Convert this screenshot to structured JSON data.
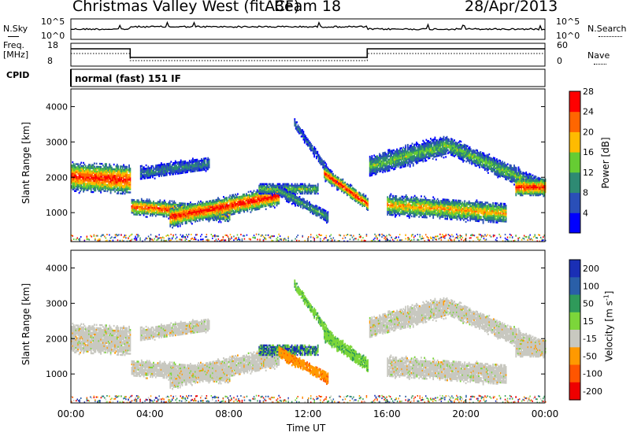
{
  "header": {
    "station": "Christmas Valley West (fitACF)",
    "beam": "Beam 18",
    "date": "28/Apr/2013"
  },
  "noise_panel": {
    "left_label": "N.Sky",
    "right_label": "N.Search",
    "tick_top": "10^5",
    "tick_bottom": "10^0"
  },
  "freq_panel": {
    "left_label_1": "Freq.",
    "left_label_2": "[MHz]",
    "tick_top": "18",
    "tick_bottom": "8",
    "right_label": "Nave",
    "right_tick_top": "60",
    "right_tick_bottom": "0"
  },
  "cpid": {
    "label": "CPID",
    "mode": "normal (fast) 151 IF"
  },
  "chart_data": [
    {
      "type": "heatmap",
      "quantity": "Power",
      "ylabel": "Slant Range [km]",
      "xlabel": "",
      "ylim": [
        180,
        4500
      ],
      "yticks": [
        "1000",
        "2000",
        "3000",
        "4000"
      ],
      "colorbar": {
        "label": "Power [dB]",
        "ticks": [
          "4",
          "8",
          "12",
          "16",
          "20",
          "24",
          "28"
        ],
        "colors": [
          "#0000ff",
          "#2a4fb8",
          "#2e8a73",
          "#66cc33",
          "#ffbb00",
          "#ff6600",
          "#ff0000"
        ]
      }
    },
    {
      "type": "heatmap",
      "quantity": "Velocity",
      "ylabel": "Slant Range [km]",
      "xlabel": "Time UT",
      "xlim": [
        0,
        24
      ],
      "xticks": [
        "00:00",
        "04:00",
        "08:00",
        "12:00",
        "16:00",
        "20:00",
        "00:00"
      ],
      "ylim": [
        180,
        4500
      ],
      "yticks": [
        "1000",
        "2000",
        "3000",
        "4000"
      ],
      "colorbar": {
        "label": "Velocity [m s",
        "label_sup": "-1",
        "label_end": "]",
        "ticks": [
          "200",
          "100",
          "50",
          "15",
          "-15",
          "-50",
          "-100",
          "-200"
        ],
        "colors": [
          "#1a2fb5",
          "#2a5fa8",
          "#2f9a5a",
          "#7cd63a",
          "#c8c8c0",
          "#ff9900",
          "#ff5500",
          "#ee0000"
        ]
      }
    }
  ]
}
